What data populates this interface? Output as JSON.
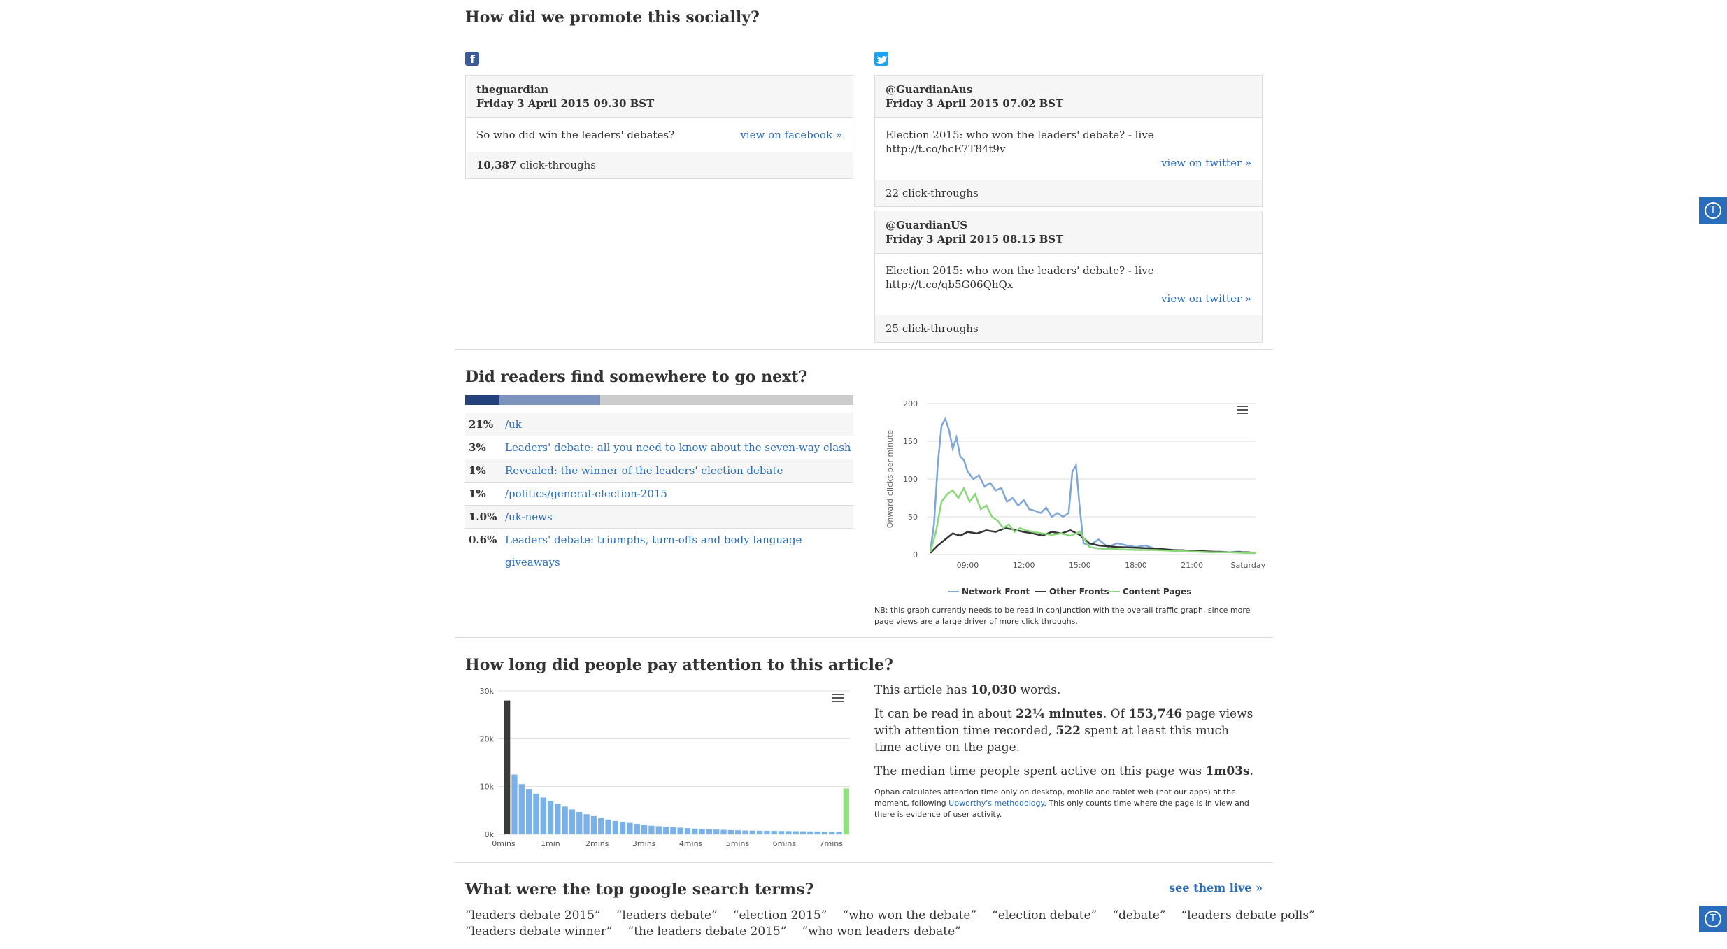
{
  "social": {
    "heading": "How did we promote this socially?",
    "facebook": {
      "account": "theguardian",
      "date": "Friday 3 April 2015 09.30 BST",
      "message": "So who did win the leaders' debates?",
      "link_label": "view on facebook »",
      "clicks": "10,387",
      "clicks_suffix": "click-throughs"
    },
    "twitter": [
      {
        "account": "@GuardianAus",
        "date": "Friday 3 April 2015 07.02 BST",
        "message": "Election 2015: who won the leaders' debate? - live http://t.co/hcE7T84t9v",
        "link_label": "view on twitter »",
        "clicks": "22",
        "clicks_suffix": "click-throughs"
      },
      {
        "account": "@GuardianUS",
        "date": "Friday 3 April 2015 08.15 BST",
        "message": "Election 2015: who won the leaders' debate? - live http://t.co/qb5G06QhQx",
        "link_label": "view on twitter »",
        "clicks": "25",
        "clicks_suffix": "click-throughs"
      }
    ]
  },
  "next": {
    "heading": "Did readers find somewhere to go next?",
    "rows": [
      {
        "pct": "21%",
        "label": "/uk"
      },
      {
        "pct": "3%",
        "label": "Leaders' debate: all you need to know about the seven-way clash"
      },
      {
        "pct": "1%",
        "label": "Revealed: the winner of the leaders' election debate"
      },
      {
        "pct": "1%",
        "label": "/politics/general-election-2015"
      },
      {
        "pct": "1.0%",
        "label": "/uk-news"
      },
      {
        "pct": "0.6%",
        "label": "Leaders' debate: triumphs, turn-offs and body language giveaways"
      }
    ],
    "note": "NB: this graph currently needs to be read in conjunction with the overall traffic graph, since more page views are a large driver of more click throughs."
  },
  "attention": {
    "heading": "How long did people pay attention to this article?",
    "p1_a": "This article has ",
    "p1_b": "10,030",
    "p1_c": " words.",
    "p2_a": "It can be read in about ",
    "p2_b": "22¼ minutes",
    "p2_c": ". Of ",
    "p2_d": "153,746",
    "p2_e": " page views with attention time recorded, ",
    "p2_f": "522",
    "p2_g": " spent at least this much time active on the page.",
    "p3_a": "The median time people spent active on this page was ",
    "p3_b": "1m03s",
    "p3_c": ".",
    "small_a": "Ophan calculates attention time only on desktop, mobile and tablet web (not our apps) at the moment, following ",
    "small_link": "Upworthy's methodology",
    "small_b": ". This only counts time where the page is in view and there is evidence of user activity."
  },
  "search": {
    "heading": "What were the top google search terms?",
    "live_label": "see them live »",
    "terms_row1": [
      "“leaders debate 2015”",
      "“leaders debate”",
      "“election 2015”",
      "“who won the debate”",
      "“election debate”",
      "“debate”",
      "“leaders debate polls”"
    ],
    "terms_row2": [
      "“leaders debate winner”",
      "“the leaders debate 2015”",
      "“who won leaders debate”"
    ]
  },
  "side_buttons": {
    "label": "T"
  },
  "chart_data": [
    {
      "type": "line",
      "ylabel": "Onward clicks per minute",
      "ylim": [
        0,
        200
      ],
      "yticks": [
        "0",
        "50",
        "100",
        "150",
        "200"
      ],
      "xticks": [
        "09:00",
        "12:00",
        "15:00",
        "18:00",
        "21:00",
        "Saturday"
      ],
      "x_range_hours": [
        7.0,
        24.4
      ],
      "legend_position": "bottom",
      "series": [
        {
          "name": "Network Front",
          "color": "#7ea6d6",
          "x": [
            7.0,
            7.2,
            7.4,
            7.6,
            7.8,
            8.0,
            8.2,
            8.4,
            8.6,
            8.8,
            9.0,
            9.3,
            9.6,
            9.9,
            10.2,
            10.5,
            10.8,
            11.1,
            11.4,
            11.7,
            12.0,
            12.3,
            12.6,
            12.9,
            13.2,
            13.5,
            13.8,
            14.1,
            14.4,
            14.6,
            14.8,
            15.0,
            15.2,
            15.5,
            16.0,
            16.5,
            17.0,
            17.5,
            18.0,
            18.5,
            19.0,
            19.5,
            20.0,
            20.5,
            21.0,
            21.5,
            22.0,
            22.5,
            23.0,
            23.5,
            24.0,
            24.4
          ],
          "y": [
            5,
            40,
            120,
            170,
            180,
            165,
            140,
            155,
            130,
            125,
            110,
            100,
            105,
            90,
            95,
            85,
            88,
            70,
            75,
            65,
            72,
            60,
            58,
            55,
            62,
            50,
            55,
            50,
            55,
            110,
            118,
            60,
            15,
            12,
            20,
            10,
            15,
            12,
            10,
            12,
            8,
            6,
            5,
            6,
            4,
            5,
            3,
            4,
            3,
            4,
            2,
            2
          ]
        },
        {
          "name": "Other Fronts",
          "color": "#333333",
          "x": [
            7.0,
            7.4,
            7.8,
            8.2,
            8.6,
            9.0,
            9.5,
            10.0,
            10.5,
            11.0,
            11.5,
            12.0,
            12.5,
            13.0,
            13.5,
            14.0,
            14.5,
            15.0,
            15.5,
            16.0,
            17.0,
            18.0,
            19.0,
            20.0,
            21.0,
            22.0,
            23.0,
            24.0,
            24.4
          ],
          "y": [
            2,
            12,
            20,
            28,
            25,
            30,
            28,
            32,
            30,
            35,
            33,
            30,
            28,
            25,
            30,
            28,
            32,
            26,
            15,
            12,
            10,
            9,
            8,
            6,
            5,
            4,
            3,
            3,
            2
          ]
        },
        {
          "name": "Content Pages",
          "color": "#8ad87a",
          "x": [
            7.0,
            7.3,
            7.6,
            7.9,
            8.2,
            8.5,
            8.8,
            9.1,
            9.4,
            9.7,
            10.0,
            10.3,
            10.6,
            10.9,
            11.2,
            11.5,
            11.8,
            12.1,
            12.5,
            13.0,
            13.5,
            14.0,
            14.5,
            15.0,
            15.5,
            16.0,
            17.0,
            18.0,
            19.0,
            20.0,
            21.0,
            22.0,
            23.0,
            24.0,
            24.4
          ],
          "y": [
            3,
            30,
            70,
            80,
            85,
            75,
            88,
            70,
            80,
            60,
            65,
            50,
            45,
            35,
            40,
            30,
            35,
            32,
            30,
            28,
            26,
            28,
            25,
            30,
            10,
            8,
            7,
            6,
            6,
            5,
            4,
            3,
            3,
            2,
            2
          ]
        }
      ]
    },
    {
      "type": "bar",
      "ylim": [
        0,
        30000
      ],
      "yticks": [
        "0k",
        "10k",
        "20k",
        "30k"
      ],
      "xticks": [
        "0mins",
        "1min",
        "2mins",
        "3mins",
        "4mins",
        "5mins",
        "6mins",
        "7mins"
      ],
      "values": [
        28000,
        12500,
        10500,
        9500,
        8500,
        7700,
        7000,
        6400,
        5800,
        5200,
        4700,
        4200,
        3800,
        3400,
        3100,
        2800,
        2600,
        2400,
        2200,
        2000,
        1800,
        1700,
        1600,
        1500,
        1400,
        1300,
        1200,
        1100,
        1050,
        1000,
        950,
        900,
        850,
        800,
        780,
        760,
        740,
        720,
        700,
        680,
        660,
        640,
        620,
        600,
        580,
        560,
        540,
        9600
      ],
      "colors": {
        "first": "#3b3b3b",
        "middle": "#7ab1e8",
        "last": "#8ee27a"
      }
    }
  ]
}
